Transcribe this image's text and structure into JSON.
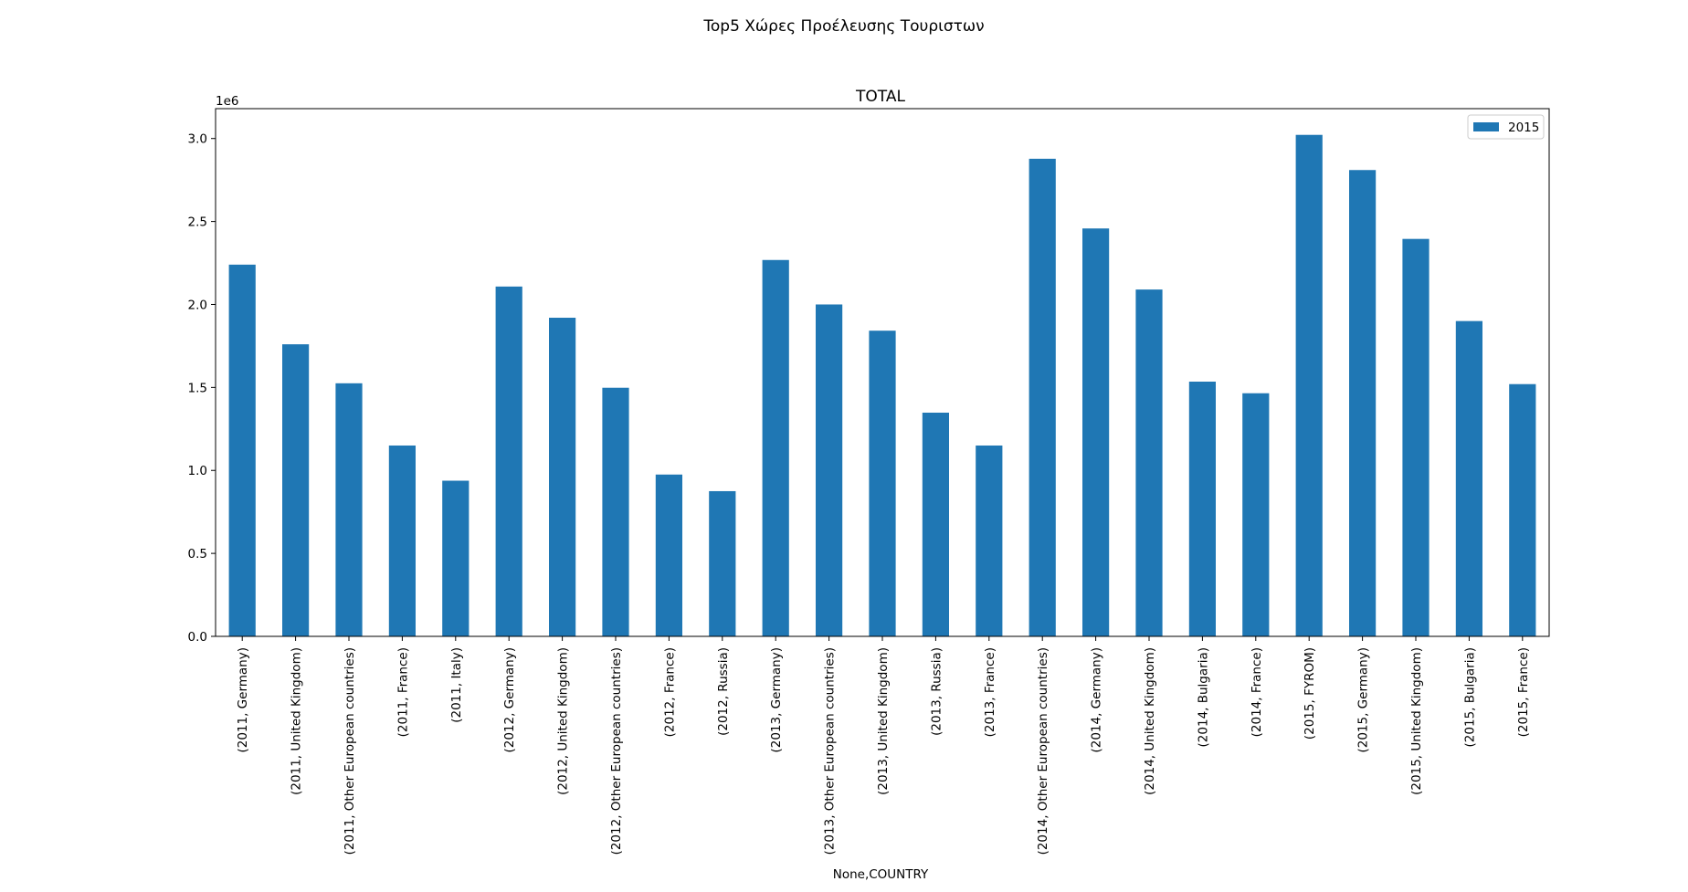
{
  "figure": {
    "suptitle": "Top5 Χώρες Προέλευσης Τουριστων"
  },
  "chart_data": {
    "type": "bar",
    "title": "TOTAL",
    "xlabel": "None,COUNTRY",
    "ylabel": "",
    "y_offset_text": "1e6",
    "y_scale_multiplier": 1000000,
    "ylim": [
      0,
      3180000
    ],
    "yticks": [
      0,
      500000,
      1000000,
      1500000,
      2000000,
      2500000,
      3000000
    ],
    "ytick_labels": [
      "0.0",
      "0.5",
      "1.0",
      "1.5",
      "2.0",
      "2.5",
      "3.0"
    ],
    "grid": false,
    "legend_position": "top-right",
    "bar_color": "#1f77b4",
    "categories": [
      "(2011, Germany)",
      "(2011, United Kingdom)",
      "(2011, Other European countries)",
      "(2011, France)",
      "(2011, Italy)",
      "(2012, Germany)",
      "(2012, United Kingdom)",
      "(2012, Other European countries)",
      "(2012, France)",
      "(2012, Russia)",
      "(2013, Germany)",
      "(2013, Other European countries)",
      "(2013, United Kingdom)",
      "(2013, Russia)",
      "(2013, France)",
      "(2014, Other European countries)",
      "(2014, Germany)",
      "(2014, United Kingdom)",
      "(2014, Bulgaria)",
      "(2014, France)",
      "(2015, FYROM)",
      "(2015, Germany)",
      "(2015, United Kingdom)",
      "(2015, Bulgaria)",
      "(2015, France)"
    ],
    "series": [
      {
        "name": "2015",
        "color": "#1f77b4",
        "values": [
          2240000,
          1760000,
          1525000,
          1150000,
          938000,
          2108000,
          1920000,
          1498000,
          975000,
          875000,
          2268000,
          2000000,
          1842000,
          1348000,
          1150000,
          2878000,
          2458000,
          2090000,
          1535000,
          1465000,
          3022000,
          2810000,
          2395000,
          1900000,
          1520000
        ]
      }
    ]
  }
}
